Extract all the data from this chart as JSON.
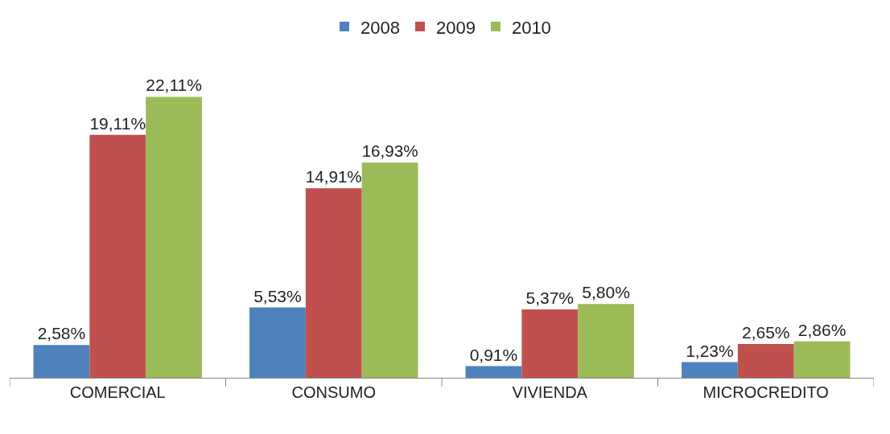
{
  "chart_data": {
    "type": "bar",
    "categories": [
      "COMERCIAL",
      "CONSUMO",
      "VIVIENDA",
      "MICROCREDITO"
    ],
    "series": [
      {
        "name": "2008",
        "color": "#4f81bd",
        "values": [
          2.58,
          5.53,
          0.91,
          1.23
        ],
        "value_labels": [
          "2,58%",
          "5,53%",
          "0,91%",
          "1,23%"
        ]
      },
      {
        "name": "2009",
        "color": "#c0504d",
        "values": [
          19.11,
          14.91,
          5.37,
          2.65
        ],
        "value_labels": [
          "19,11%",
          "14,91%",
          "5,37%",
          "2,65%"
        ]
      },
      {
        "name": "2010",
        "color": "#9bbb59",
        "values": [
          22.11,
          16.93,
          5.8,
          2.86
        ],
        "value_labels": [
          "22,11%",
          "16,93%",
          "5,80%",
          "2,86%"
        ]
      }
    ],
    "legend": "top",
    "tick_labels": "x"
  }
}
